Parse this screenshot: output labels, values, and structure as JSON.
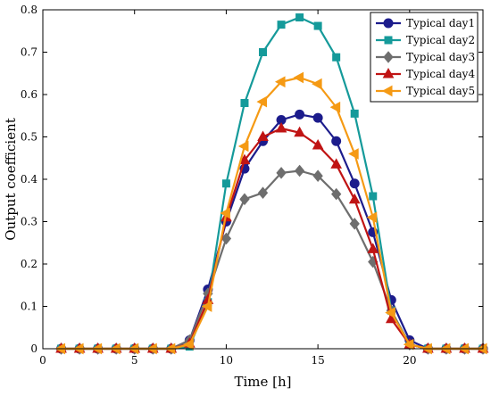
{
  "chart_data": {
    "type": "line",
    "xlabel": "Time [h]",
    "ylabel": "Output coefficient",
    "xlim": [
      0,
      24
    ],
    "ylim": [
      0,
      0.8
    ],
    "xticks": [
      0,
      5,
      10,
      15,
      20
    ],
    "yticks": [
      0,
      0.1,
      0.2,
      0.3,
      0.4,
      0.5,
      0.6,
      0.7,
      0.8
    ],
    "grid": false,
    "legend_position": "top-right",
    "x": [
      1,
      2,
      3,
      4,
      5,
      6,
      7,
      8,
      9,
      10,
      11,
      12,
      13,
      14,
      15,
      16,
      17,
      18,
      19,
      20,
      21,
      22,
      23,
      24
    ],
    "series": [
      {
        "name": "Typical day1",
        "color": "#1c1c8c",
        "marker": "circle",
        "values": [
          0,
          0,
          0,
          0,
          0,
          0,
          0,
          0.02,
          0.14,
          0.3,
          0.425,
          0.49,
          0.54,
          0.553,
          0.545,
          0.49,
          0.39,
          0.275,
          0.115,
          0.02,
          0,
          0,
          0,
          0
        ]
      },
      {
        "name": "Typical day2",
        "color": "#159a9a",
        "marker": "square",
        "values": [
          0,
          0,
          0,
          0,
          0,
          0,
          0,
          0.005,
          0.11,
          0.39,
          0.58,
          0.7,
          0.765,
          0.782,
          0.762,
          0.688,
          0.555,
          0.36,
          0.09,
          0.01,
          0,
          0,
          0,
          0
        ]
      },
      {
        "name": "Typical day3",
        "color": "#6e6e6e",
        "marker": "diamond",
        "values": [
          0,
          0,
          0,
          0,
          0,
          0,
          0,
          0.02,
          0.13,
          0.26,
          0.353,
          0.368,
          0.415,
          0.42,
          0.408,
          0.365,
          0.295,
          0.205,
          0.09,
          0.01,
          0,
          0,
          0,
          0
        ]
      },
      {
        "name": "Typical day4",
        "color": "#c01414",
        "marker": "triangle",
        "values": [
          0,
          0,
          0,
          0,
          0,
          0,
          0,
          0.012,
          0.115,
          0.31,
          0.445,
          0.5,
          0.52,
          0.51,
          0.48,
          0.435,
          0.352,
          0.235,
          0.07,
          0.01,
          0,
          0,
          0,
          0
        ]
      },
      {
        "name": "Typical day5",
        "color": "#f59a14",
        "marker": "triangle-left",
        "values": [
          0,
          0,
          0,
          0,
          0,
          0,
          0,
          0.01,
          0.1,
          0.32,
          0.478,
          0.583,
          0.63,
          0.64,
          0.625,
          0.57,
          0.46,
          0.31,
          0.085,
          0.01,
          0,
          0,
          0,
          0
        ]
      }
    ]
  }
}
